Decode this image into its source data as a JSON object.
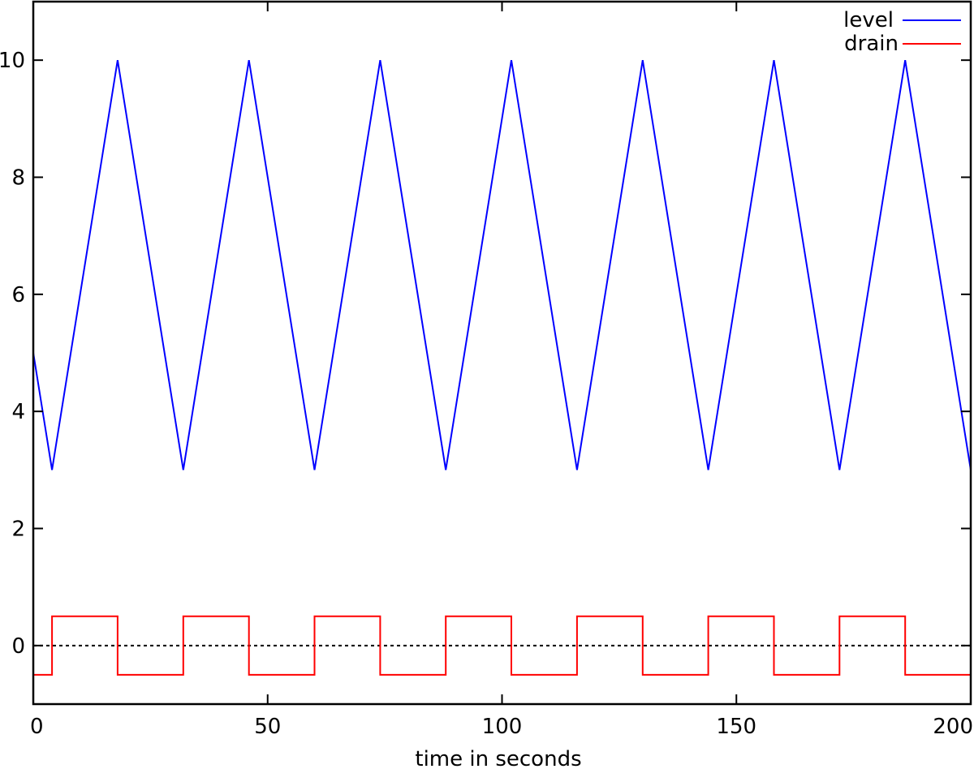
{
  "chart_data": {
    "type": "line",
    "title": "",
    "xlabel": "time in seconds",
    "ylabel": "",
    "xlim": [
      0,
      200
    ],
    "ylim": [
      -1,
      11
    ],
    "grid": false,
    "legend_position": "top-right",
    "x_ticks": [
      0,
      50,
      100,
      150,
      200
    ],
    "x_tick_labels": [
      "0",
      "50",
      "100",
      "150",
      "200"
    ],
    "y_ticks": [
      0,
      2,
      4,
      6,
      8,
      10
    ],
    "y_tick_labels": [
      "0",
      "2",
      "4",
      "6",
      "8",
      "10"
    ],
    "reference_lines": [
      {
        "type": "horizontal",
        "y": 0,
        "style": "dotted",
        "color": "#000000"
      }
    ],
    "series": [
      {
        "name": "level",
        "color": "#0000ff",
        "style": "line",
        "x": [
          0,
          4,
          18,
          32,
          46,
          60,
          74,
          88,
          102,
          116,
          130,
          144,
          158,
          172,
          186,
          200
        ],
        "y": [
          5,
          3,
          10,
          3,
          10,
          3,
          10,
          3,
          10,
          3,
          10,
          3,
          10,
          3,
          10,
          3
        ]
      },
      {
        "name": "drain",
        "color": "#ff0000",
        "style": "step",
        "x": [
          0,
          4,
          18,
          32,
          46,
          60,
          74,
          88,
          102,
          116,
          130,
          144,
          158,
          172,
          186,
          200
        ],
        "y": [
          -0.5,
          0.5,
          -0.5,
          0.5,
          -0.5,
          0.5,
          -0.5,
          0.5,
          -0.5,
          0.5,
          -0.5,
          0.5,
          -0.5,
          0.5,
          -0.5,
          -0.5
        ]
      }
    ]
  },
  "legend": {
    "items": [
      {
        "label": "level",
        "color": "#0000ff"
      },
      {
        "label": "drain",
        "color": "#ff0000"
      }
    ]
  }
}
